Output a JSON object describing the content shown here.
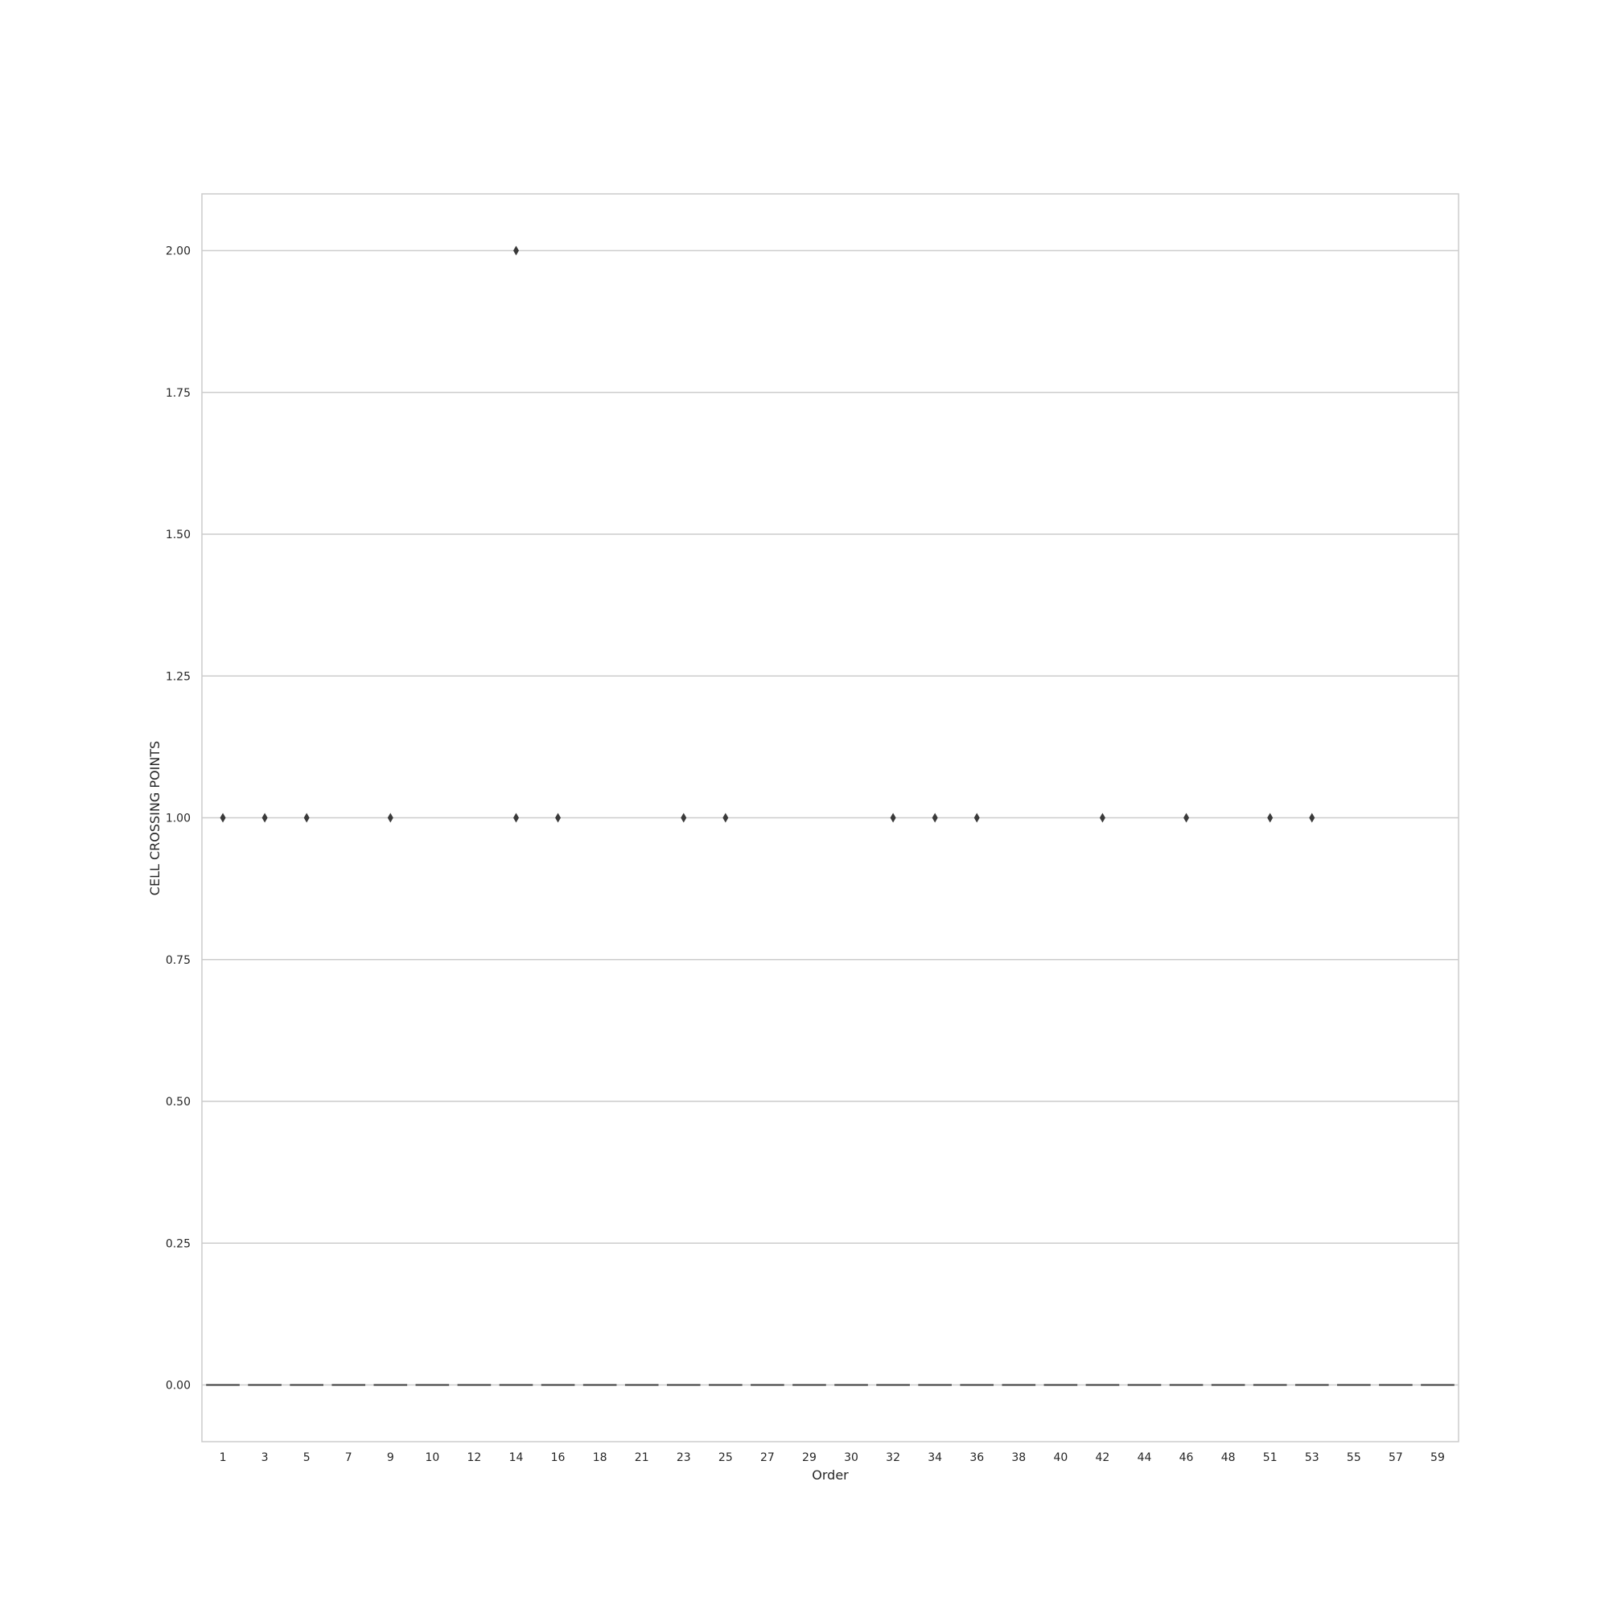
{
  "chart_data": {
    "type": "box",
    "title": "",
    "xlabel": "Order",
    "ylabel": "CELL CROSSING POINTS",
    "categories": [
      "1",
      "3",
      "5",
      "7",
      "9",
      "10",
      "12",
      "14",
      "16",
      "18",
      "21",
      "23",
      "25",
      "27",
      "29",
      "30",
      "32",
      "34",
      "36",
      "38",
      "40",
      "42",
      "44",
      "46",
      "48",
      "51",
      "53",
      "55",
      "57",
      "59"
    ],
    "median": [
      0,
      0,
      0,
      0,
      0,
      0,
      0,
      0,
      0,
      0,
      0,
      0,
      0,
      0,
      0,
      0,
      0,
      0,
      0,
      0,
      0,
      0,
      0,
      0,
      0,
      0,
      0,
      0,
      0,
      0
    ],
    "outliers": [
      {
        "category": "1",
        "values": [
          1
        ]
      },
      {
        "category": "3",
        "values": [
          1
        ]
      },
      {
        "category": "5",
        "values": [
          1
        ]
      },
      {
        "category": "9",
        "values": [
          1
        ]
      },
      {
        "category": "14",
        "values": [
          1,
          2
        ]
      },
      {
        "category": "16",
        "values": [
          1
        ]
      },
      {
        "category": "23",
        "values": [
          1
        ]
      },
      {
        "category": "25",
        "values": [
          1
        ]
      },
      {
        "category": "32",
        "values": [
          1
        ]
      },
      {
        "category": "34",
        "values": [
          1
        ]
      },
      {
        "category": "36",
        "values": [
          1
        ]
      },
      {
        "category": "42",
        "values": [
          1
        ]
      },
      {
        "category": "46",
        "values": [
          1
        ]
      },
      {
        "category": "51",
        "values": [
          1
        ]
      },
      {
        "category": "53",
        "values": [
          1
        ]
      }
    ],
    "y_ticks": [
      "0.00",
      "0.25",
      "0.50",
      "0.75",
      "1.00",
      "1.25",
      "1.50",
      "1.75",
      "2.00"
    ],
    "ylim": [
      -0.1,
      2.1
    ],
    "grid": true,
    "colors": {
      "grid": "#cccccc",
      "frame": "#cccccc",
      "marks": "#3a3a3a",
      "text": "#262626"
    }
  }
}
